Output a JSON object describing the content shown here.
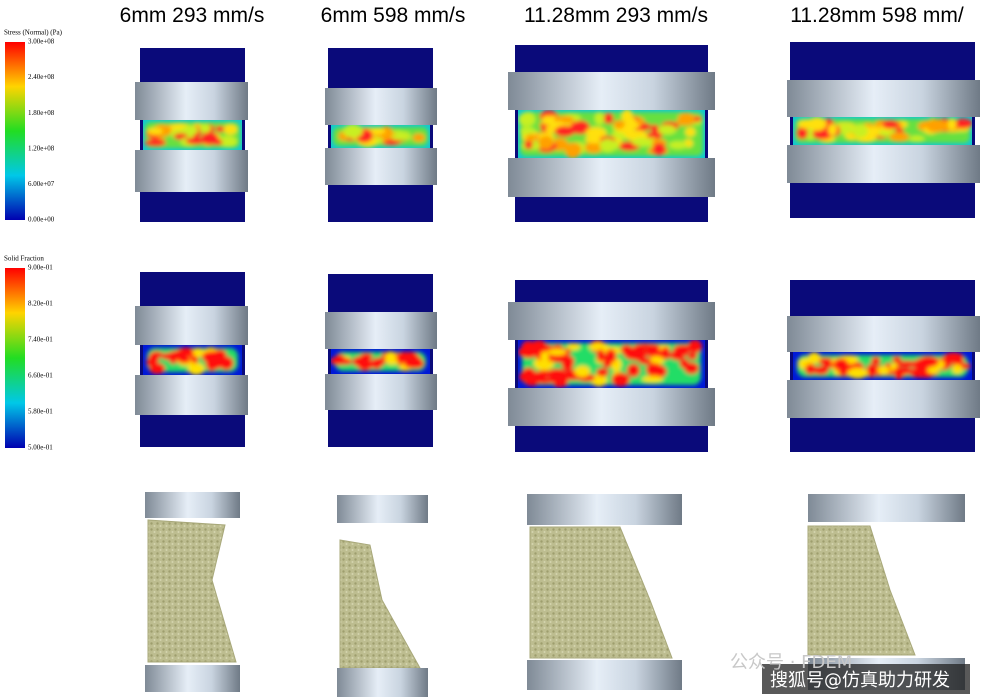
{
  "headers": [
    "6mm 293 mm/s",
    "6mm 598 mm/s",
    "11.28mm 293 mm/s",
    "11.28mm 598 mm/"
  ],
  "legends": [
    {
      "title": "Stress (Normal) (Pa)",
      "labels": [
        "3.00e+08",
        "2.40e+08",
        "1.80e+08",
        "1.20e+08",
        "6.00e+07",
        "0.00e+00"
      ]
    },
    {
      "title": "Solid Fraction",
      "labels": [
        "9.00e-01",
        "8.20e-01",
        "7.40e-01",
        "6.60e-01",
        "5.80e-01",
        "5.00e-01"
      ]
    }
  ],
  "watermark": [
    "公众号 · FDEM",
    "搜狐号@仿真助力研发"
  ]
}
